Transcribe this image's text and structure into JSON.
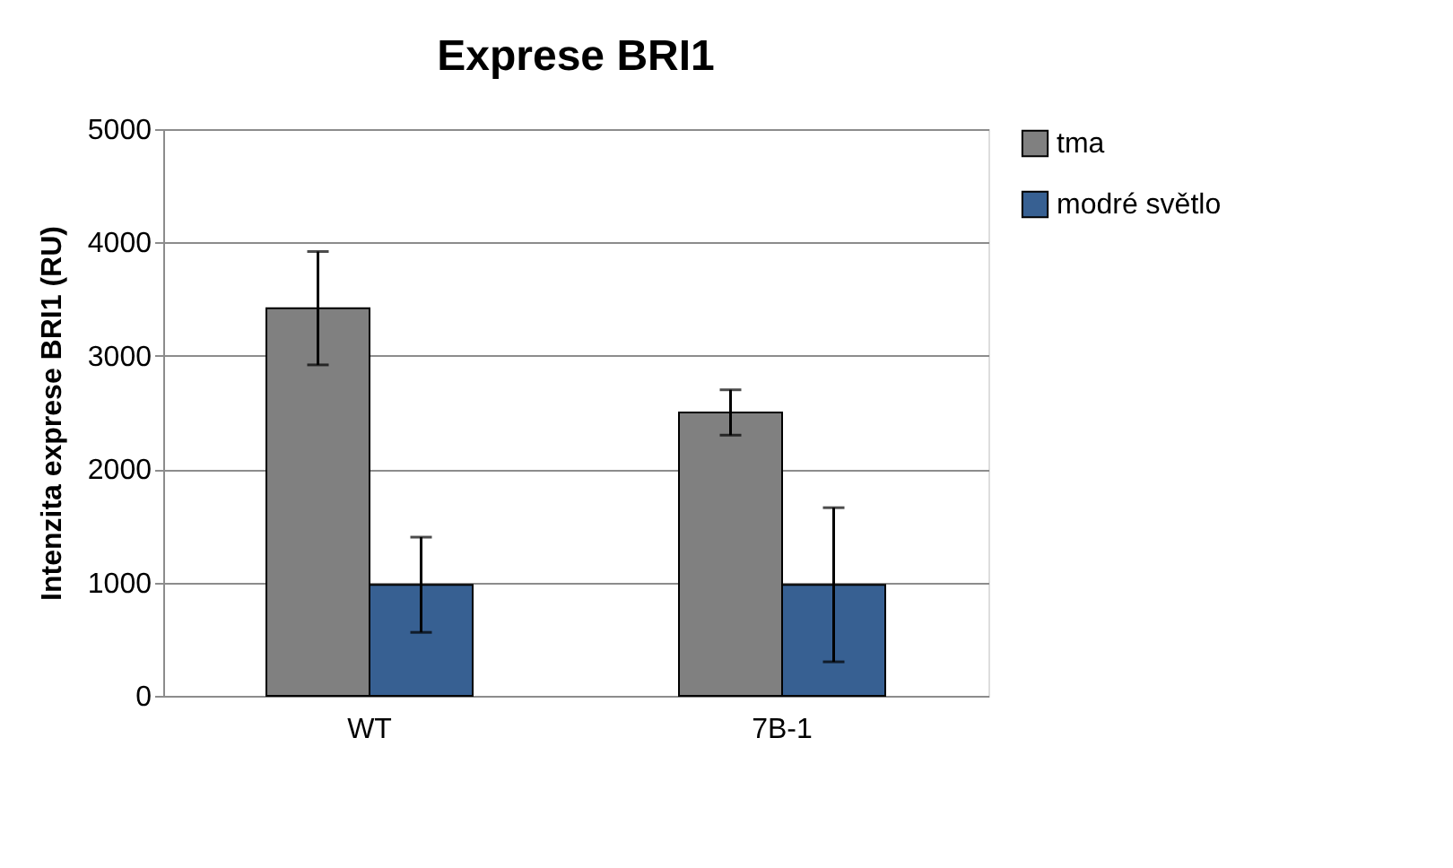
{
  "chart_data": {
    "type": "bar",
    "title": "Exprese BRI1",
    "ylabel": "Intenzita exprese BRI1 (RU)",
    "categories": [
      "WT",
      "7B-1"
    ],
    "series": [
      {
        "name": "tma",
        "color": "#808080",
        "values": [
          3420,
          2500
        ],
        "errors": [
          500,
          200
        ]
      },
      {
        "name": "modré světlo",
        "color": "#376092",
        "values": [
          980,
          980
        ],
        "errors": [
          420,
          680
        ]
      }
    ],
    "ylim": [
      0,
      5000
    ],
    "yticks": [
      0,
      1000,
      2000,
      3000,
      4000,
      5000
    ],
    "grid": "y",
    "legend": "right"
  }
}
